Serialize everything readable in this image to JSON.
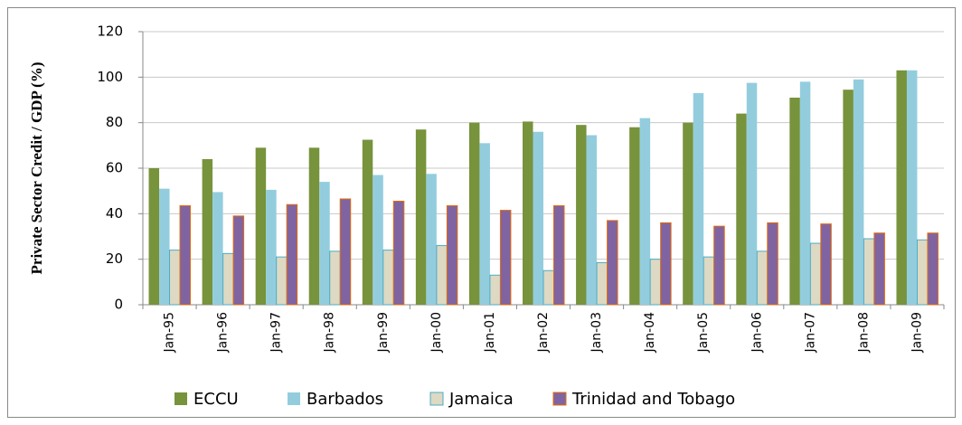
{
  "chart_data": {
    "type": "bar",
    "y_label": "Private Sector Credit / GDP (%)",
    "categories": [
      "Jan-95",
      "Jan-96",
      "Jan-97",
      "Jan-98",
      "Jan-99",
      "Jan-00",
      "Jan-01",
      "Jan-02",
      "Jan-03",
      "Jan-04",
      "Jan-05",
      "Jan-06",
      "Jan-07",
      "Jan-08",
      "Jan-09"
    ],
    "series": [
      {
        "name": "ECCU",
        "color": "#77933c",
        "values": [
          60,
          64,
          69,
          69,
          72.5,
          77,
          80,
          80.5,
          79,
          78,
          80,
          84,
          91,
          94.5,
          103
        ]
      },
      {
        "name": "Barbados",
        "color": "#93cddd",
        "values": [
          51,
          49.5,
          50.5,
          54,
          57,
          57.5,
          71,
          76,
          74.5,
          82,
          93,
          97.5,
          98,
          99,
          103
        ]
      },
      {
        "name": "Jamaica",
        "color": "#ddd9c3",
        "values": [
          24,
          22.5,
          21,
          23.5,
          24,
          26,
          13,
          15,
          18.5,
          20,
          21,
          23.5,
          27,
          29,
          28.5
        ]
      },
      {
        "name": "Trinidad and Tobago",
        "color": "#8064a2",
        "values": [
          43.5,
          39,
          44,
          46.5,
          45.5,
          43.5,
          41.5,
          43.5,
          37,
          36,
          34.5,
          36,
          35.5,
          31.5,
          31.5
        ]
      }
    ],
    "ylim": [
      0,
      120
    ],
    "yticks": [
      0,
      20,
      40,
      60,
      80,
      100,
      120
    ],
    "grid": true,
    "legend": "bottom"
  }
}
